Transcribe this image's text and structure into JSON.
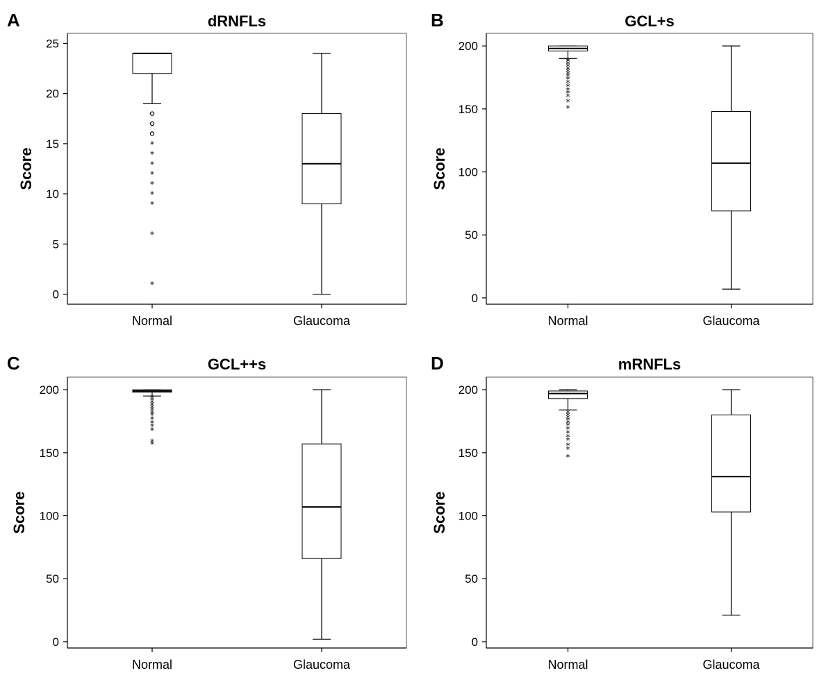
{
  "chart_data": [
    {
      "type": "box",
      "panel_letter": "A",
      "title": "dRNFLs",
      "ylabel": "Score",
      "xlabel": "",
      "ylim": [
        -1,
        26
      ],
      "yticks": [
        0,
        5,
        10,
        15,
        20,
        25
      ],
      "categories": [
        "Normal",
        "Glaucoma"
      ],
      "boxes": [
        {
          "category": "Normal",
          "whisker_low": 19,
          "q1": 22,
          "median": 24,
          "q3": 24,
          "whisker_high": 24,
          "outliers_circle": [
            16,
            17,
            18
          ],
          "outliers_star": [
            1,
            6,
            9,
            10,
            11,
            12,
            13,
            14,
            15
          ]
        },
        {
          "category": "Glaucoma",
          "whisker_low": 0,
          "q1": 9,
          "median": 13,
          "q3": 18,
          "whisker_high": 24,
          "outliers_circle": [],
          "outliers_star": []
        }
      ]
    },
    {
      "type": "box",
      "panel_letter": "B",
      "title": "GCL+s",
      "ylabel": "Score",
      "xlabel": "",
      "ylim": [
        -5,
        210
      ],
      "yticks": [
        0,
        50,
        100,
        150,
        200
      ],
      "categories": [
        "Normal",
        "Glaucoma"
      ],
      "boxes": [
        {
          "category": "Normal",
          "whisker_low": 190,
          "q1": 196,
          "median": 198,
          "q3": 200,
          "whisker_high": 200,
          "outliers_circle": [],
          "outliers_star": [
            151,
            156,
            160,
            163,
            165,
            168,
            171,
            174,
            176,
            178,
            180,
            182,
            184,
            186,
            188,
            189
          ]
        },
        {
          "category": "Glaucoma",
          "whisker_low": 7,
          "q1": 69,
          "median": 107,
          "q3": 148,
          "whisker_high": 200,
          "outliers_circle": [],
          "outliers_star": []
        }
      ]
    },
    {
      "type": "box",
      "panel_letter": "C",
      "title": "GCL++s",
      "ylabel": "Score",
      "xlabel": "",
      "ylim": [
        -5,
        210
      ],
      "yticks": [
        0,
        50,
        100,
        150,
        200
      ],
      "categories": [
        "Normal",
        "Glaucoma"
      ],
      "boxes": [
        {
          "category": "Normal",
          "whisker_low": 195,
          "q1": 198,
          "median": 199,
          "q3": 200,
          "whisker_high": 200,
          "outliers_circle": [],
          "outliers_star": [
            157,
            159,
            168,
            171,
            174,
            177,
            180,
            182,
            184,
            186,
            188,
            190,
            192,
            194
          ]
        },
        {
          "category": "Glaucoma",
          "whisker_low": 2,
          "q1": 66,
          "median": 107,
          "q3": 157,
          "whisker_high": 200,
          "outliers_circle": [],
          "outliers_star": []
        }
      ]
    },
    {
      "type": "box",
      "panel_letter": "D",
      "title": "mRNFLs",
      "ylabel": "Score",
      "xlabel": "",
      "ylim": [
        -5,
        210
      ],
      "yticks": [
        0,
        50,
        100,
        150,
        200
      ],
      "categories": [
        "Normal",
        "Glaucoma"
      ],
      "boxes": [
        {
          "category": "Normal",
          "whisker_low": 184,
          "q1": 193,
          "median": 197,
          "q3": 199,
          "whisker_high": 200,
          "outliers_circle": [],
          "outliers_star": [
            147,
            153,
            156,
            160,
            163,
            166,
            169,
            172,
            174,
            176,
            178,
            180,
            182
          ]
        },
        {
          "category": "Glaucoma",
          "whisker_low": 21,
          "q1": 103,
          "median": 131,
          "q3": 180,
          "whisker_high": 200,
          "outliers_circle": [],
          "outliers_star": []
        }
      ]
    }
  ]
}
